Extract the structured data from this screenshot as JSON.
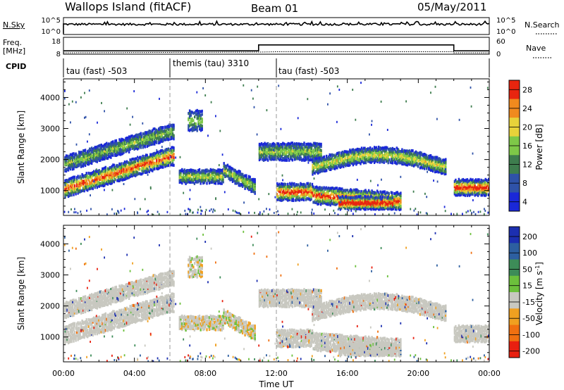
{
  "header": {
    "station": "Wallops Island (fitACF)",
    "beam": "Beam 01",
    "date": "05/May/2011"
  },
  "top_panels": {
    "nsky_label": "N.Sky",
    "nsky_ticks": [
      "10^5",
      "10^0"
    ],
    "nsearch_label": "N.Search",
    "nsearch_ticks": [
      "10^5",
      "10^0"
    ],
    "freq_label_line1": "Freq.",
    "freq_label_line2": "[MHz]",
    "freq_ticks": [
      "18",
      "8"
    ],
    "nave_label": "Nave",
    "nave_ticks": [
      "60",
      "0"
    ],
    "cpid_label": "CPID"
  },
  "chart_data": {
    "type": "heatmap",
    "xlabel": "Time UT",
    "x_ticks": [
      "00:00",
      "04:00",
      "08:00",
      "12:00",
      "16:00",
      "20:00",
      "00:00"
    ],
    "x_range_hours": [
      0,
      24
    ],
    "ylabel": "Slant Range [km]",
    "y_ticks": [
      1000,
      2000,
      3000,
      4000
    ],
    "ylim_km": [
      200,
      4600
    ],
    "dashed_vlines_hours": [
      6,
      12
    ],
    "cpid_segments": [
      {
        "start_hour": 0,
        "end_hour": 6,
        "label": "tau (fast) -503"
      },
      {
        "start_hour": 6,
        "end_hour": 12,
        "label": "themis (tau) 3310"
      },
      {
        "start_hour": 12,
        "end_hour": 24,
        "label": "tau (fast) -503"
      }
    ],
    "frequency_mhz": [
      {
        "start_hour": 0,
        "end_hour": 11,
        "value": 10
      },
      {
        "start_hour": 11,
        "end_hour": 22,
        "value": 13.5
      },
      {
        "start_hour": 22,
        "end_hour": 24,
        "value": 10
      }
    ],
    "power": {
      "colorbar_label": "Power [dB]",
      "ticks": [
        4,
        8,
        12,
        16,
        20,
        24,
        28
      ],
      "colors": [
        "#1a28d8",
        "#2f52a8",
        "#3e7d4e",
        "#7ec848",
        "#e8d23a",
        "#f08a1e",
        "#e8250f"
      ]
    },
    "velocity": {
      "colorbar_label": "Velocity [m s^-1]",
      "ticks": [
        200,
        100,
        50,
        15,
        -15,
        -50,
        -100,
        -200
      ],
      "colors": [
        "#1c2fb0",
        "#2d5fa0",
        "#3d8c58",
        "#6cc03c",
        "#c8c8c0",
        "#f0a020",
        "#f07010",
        "#e82010"
      ]
    }
  }
}
